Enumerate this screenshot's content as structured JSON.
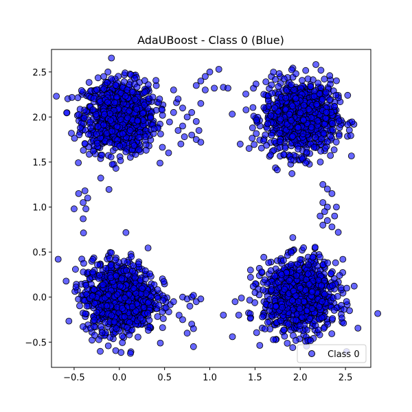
{
  "chart_data": {
    "type": "scatter",
    "title": "AdaUBoost - Class 0 (Blue)",
    "xlabel": "",
    "ylabel": "",
    "xlim": [
      -0.75,
      2.78
    ],
    "ylim": [
      -0.78,
      2.75
    ],
    "xticks": [
      -0.5,
      0.0,
      0.5,
      1.0,
      1.5,
      2.0,
      2.5
    ],
    "xtick_labels": [
      "−0.5",
      "0.0",
      "0.5",
      "1.0",
      "1.5",
      "2.0",
      "2.5"
    ],
    "yticks": [
      -0.5,
      0.0,
      0.5,
      1.0,
      1.5,
      2.0,
      2.5
    ],
    "ytick_labels": [
      "−0.5",
      "0.0",
      "0.5",
      "1.0",
      "1.5",
      "2.0",
      "2.5"
    ],
    "grid": false,
    "legend": {
      "position": "lower-right",
      "entries": [
        "Class 0"
      ]
    },
    "colors": {
      "marker_fill": "#0000ff",
      "marker_edge": "#000000",
      "marker_alpha": 0.6
    },
    "series": [
      {
        "name": "Class 0",
        "clusters": [
          {
            "center": [
              0.0,
              2.0
            ],
            "spread": 0.2,
            "count": 900
          },
          {
            "center": [
              2.0,
              2.0
            ],
            "spread": 0.2,
            "count": 900
          },
          {
            "center": [
              0.0,
              0.0
            ],
            "spread": 0.2,
            "count": 900
          },
          {
            "center": [
              2.0,
              0.0
            ],
            "spread": 0.2,
            "count": 900
          }
        ],
        "outliers": [
          [
            0.85,
            2.35
          ],
          [
            0.9,
            2.4
          ],
          [
            0.95,
            2.45
          ],
          [
            1.0,
            2.5
          ],
          [
            1.1,
            2.53
          ],
          [
            0.95,
            2.3
          ],
          [
            1.05,
            2.32
          ],
          [
            1.15,
            2.33
          ],
          [
            1.2,
            2.32
          ],
          [
            0.6,
            2.3
          ],
          [
            0.65,
            2.2
          ],
          [
            0.7,
            2.1
          ],
          [
            0.75,
            2.0
          ],
          [
            0.8,
            2.05
          ],
          [
            0.85,
            1.95
          ],
          [
            0.7,
            1.9
          ],
          [
            0.65,
            1.85
          ],
          [
            0.72,
            1.78
          ],
          [
            0.8,
            1.8
          ],
          [
            0.85,
            1.75
          ],
          [
            0.88,
            1.85
          ],
          [
            0.9,
            2.15
          ],
          [
            0.6,
            2.05
          ],
          [
            0.68,
            1.7
          ],
          [
            0.9,
            1.72
          ],
          [
            -0.45,
            1.15
          ],
          [
            -0.4,
            1.05
          ],
          [
            -0.35,
            1.1
          ],
          [
            -0.37,
            0.98
          ],
          [
            -0.5,
            0.98
          ],
          [
            -0.4,
            0.87
          ],
          [
            -0.38,
            1.18
          ],
          [
            2.25,
            1.25
          ],
          [
            2.3,
            1.2
          ],
          [
            2.35,
            1.15
          ],
          [
            2.25,
            1.05
          ],
          [
            2.3,
            1.0
          ],
          [
            2.27,
            0.95
          ],
          [
            2.22,
            0.9
          ],
          [
            2.3,
            0.85
          ],
          [
            2.25,
            0.8
          ],
          [
            2.35,
            0.78
          ],
          [
            2.4,
            1.0
          ],
          [
            2.38,
            0.9
          ],
          [
            2.42,
            0.72
          ],
          [
            0.6,
            -0.05
          ],
          [
            0.7,
            0.0
          ],
          [
            0.75,
            -0.02
          ],
          [
            0.8,
            0.0
          ],
          [
            0.85,
            -0.05
          ],
          [
            0.9,
            -0.02
          ],
          [
            0.82,
            0.02
          ],
          [
            0.78,
            -0.1
          ],
          [
            0.7,
            -0.25
          ],
          [
            0.8,
            -0.3
          ],
          [
            0.82,
            -0.35
          ],
          [
            0.75,
            -0.4
          ],
          [
            0.82,
            -0.55
          ],
          [
            1.15,
            -0.2
          ],
          [
            1.25,
            -0.44
          ],
          [
            1.35,
            -0.01
          ],
          [
            1.32,
            -0.2
          ],
          [
            1.28,
            -0.05
          ],
          [
            1.45,
            0.3
          ],
          [
            1.45,
            0.22
          ],
          [
            1.48,
            0.12
          ],
          [
            1.5,
            0.05
          ]
        ]
      }
    ]
  }
}
